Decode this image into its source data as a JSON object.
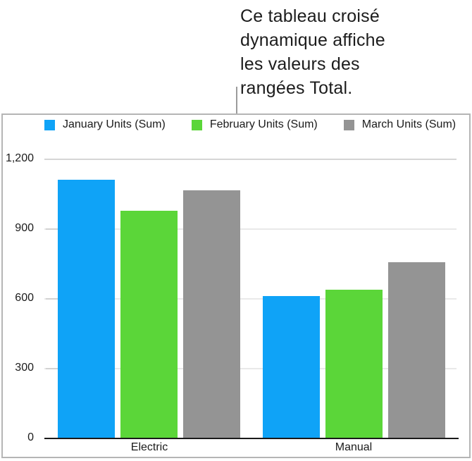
{
  "callout": {
    "lines": [
      "Ce tableau croisé",
      "dynamique affiche",
      "les valeurs des",
      "rangées Total."
    ]
  },
  "chart_data": {
    "type": "bar",
    "title": "",
    "xlabel": "",
    "ylabel": "",
    "categories": [
      "Electric",
      "Manual"
    ],
    "series": [
      {
        "name": "January Units (Sum)",
        "color": "#0FA3F7",
        "values": [
          1110,
          610
        ]
      },
      {
        "name": "February Units (Sum)",
        "color": "#5BD639",
        "values": [
          975,
          635
        ]
      },
      {
        "name": "March Units (Sum)",
        "color": "#949494",
        "values": [
          1065,
          755
        ]
      }
    ],
    "ylim": [
      0,
      1200
    ],
    "ytick_values": [
      0,
      300,
      600,
      900,
      1200
    ],
    "ytick_labels": [
      "0",
      "300",
      "600",
      "900",
      "1,200"
    ],
    "grid": true,
    "legend_position": "top"
  }
}
